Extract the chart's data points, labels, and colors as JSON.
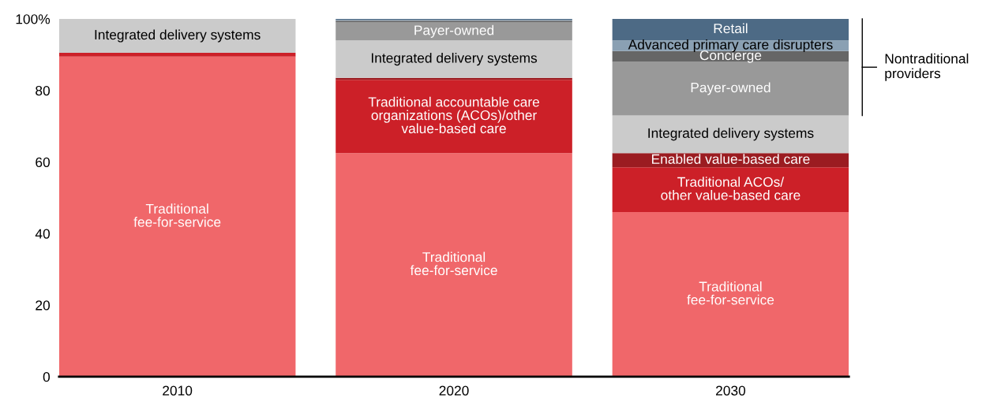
{
  "chart_data": {
    "type": "bar",
    "stacked": true,
    "categories": [
      "2010",
      "2020",
      "2030"
    ],
    "series": [
      {
        "color": "#f0676a",
        "values": [
          89.5,
          62.5,
          46
        ],
        "value_labels": [
          "Traditional\nfee-for-service",
          "Traditional\nfee-for-service",
          "Traditional\nfee-for-service"
        ]
      },
      {
        "color": "#cc2028",
        "values": [
          1,
          20.5,
          12.5
        ],
        "value_labels": [
          null,
          "Traditional accountable care\norganizations (ACOs)/other\nvalue-based care",
          "Traditional ACOs/\nother value-based care"
        ]
      },
      {
        "color": "#9b1c21",
        "values": [
          0,
          0.5,
          4
        ],
        "value_labels": [
          null,
          null,
          "Enabled value-based care"
        ]
      },
      {
        "color": "#cbcbcb",
        "values": [
          9.5,
          10.5,
          10.5
        ],
        "value_labels": [
          "Integrated delivery systems",
          "Integrated delivery systems",
          "Integrated delivery systems"
        ]
      },
      {
        "color": "#999999",
        "values": [
          0,
          5,
          15
        ],
        "value_labels": [
          null,
          "Payer-owned",
          "Payer-owned"
        ]
      },
      {
        "color": "#666666",
        "values": [
          0,
          0.5,
          3
        ],
        "value_labels": [
          null,
          null,
          "Concierge"
        ]
      },
      {
        "color": "#8aa0b3",
        "values": [
          0,
          0.2,
          3
        ],
        "value_labels": [
          null,
          null,
          "Advanced primary care disrupters"
        ]
      },
      {
        "color": "#4d6a85",
        "values": [
          0,
          0.3,
          6
        ],
        "value_labels": [
          null,
          null,
          "Retail"
        ]
      }
    ],
    "ylim": [
      0,
      100
    ],
    "yticks": [
      0,
      20,
      40,
      60,
      80,
      {
        "value": 100,
        "label": "100%"
      }
    ],
    "grid": false,
    "legend": false,
    "annotations": [
      "Nontraditional\nproviders"
    ]
  }
}
